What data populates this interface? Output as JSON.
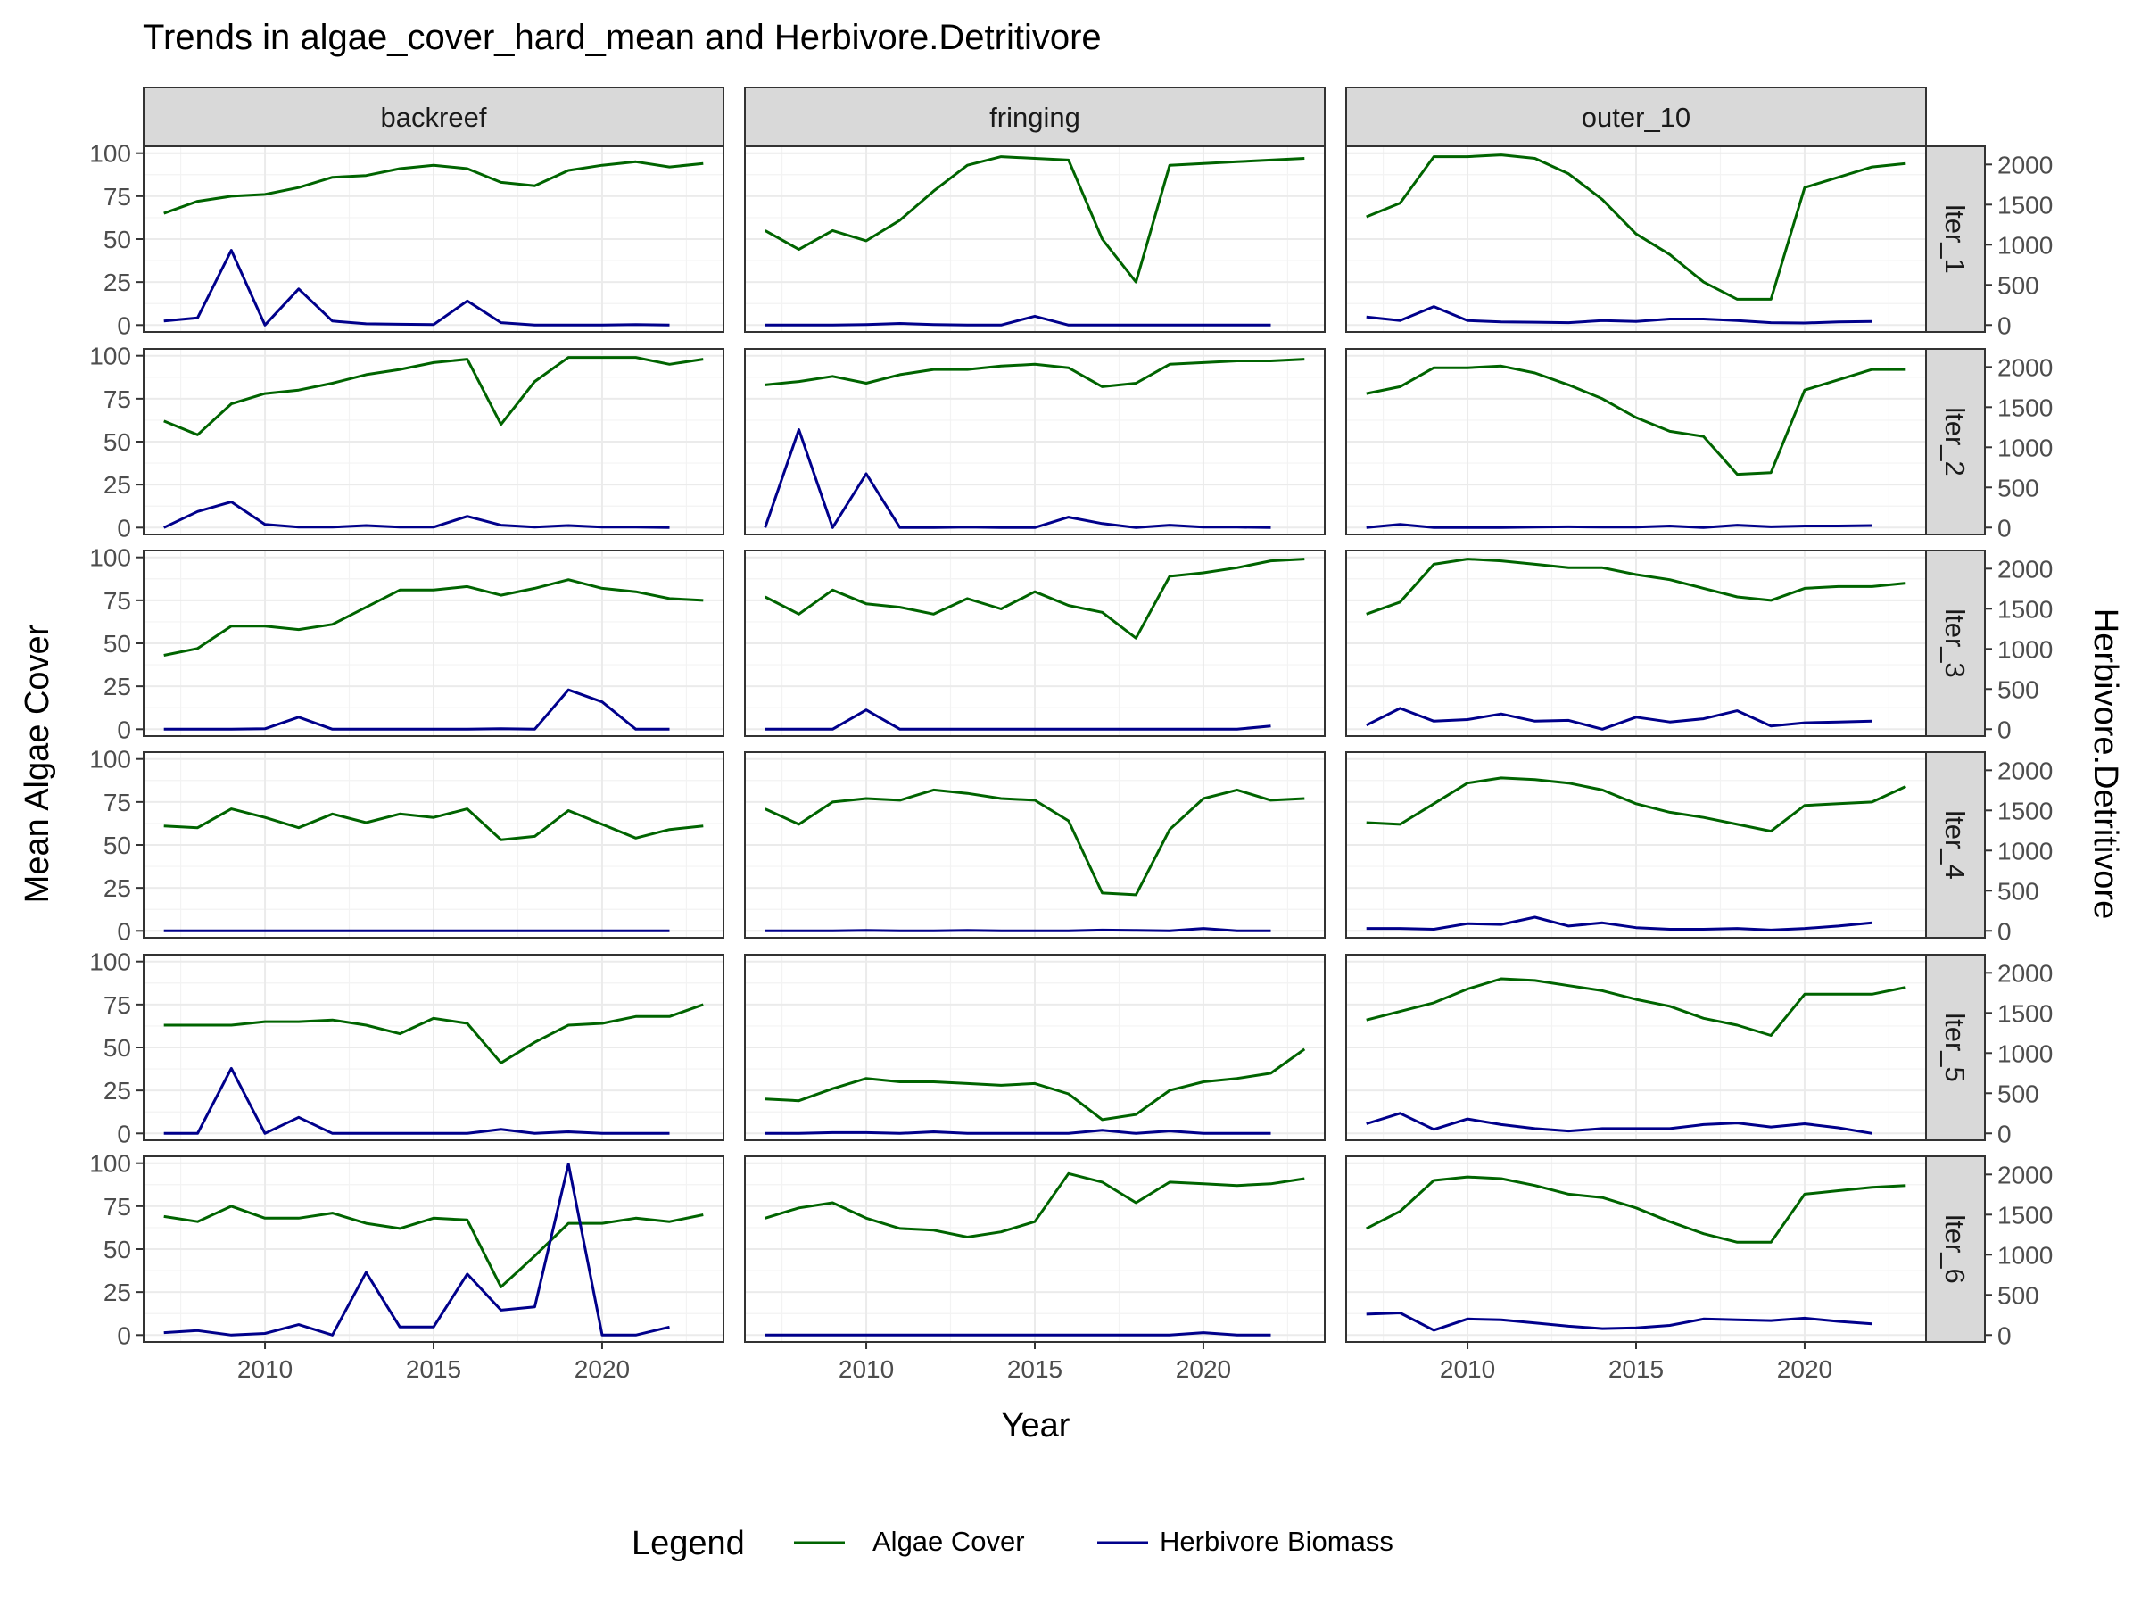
{
  "chart_data": {
    "type": "line",
    "title": "Trends in algae_cover_hard_mean and Herbivore.Detritivore",
    "xlabel": "Year",
    "ylabel": "Mean Algae Cover",
    "ylabel_right": "Herbivore.Detritivore",
    "legend": {
      "title": "Legend",
      "position": "bottom",
      "items": [
        {
          "name": "Algae Cover",
          "color": "#006400"
        },
        {
          "name": "Herbivore Biomass",
          "color": "#00008B"
        }
      ]
    },
    "xlim": [
      2006.4,
      2023.6
    ],
    "x_ticks": [
      2010,
      2015,
      2020
    ],
    "ylim": [
      -4,
      104
    ],
    "y_ticks": [
      0,
      25,
      50,
      75,
      100
    ],
    "ylim_right": [
      -86.0,
      2226.0
    ],
    "y_right_ticks": [
      0,
      500,
      1000,
      1500,
      2000
    ],
    "grid": true,
    "colors": {
      "algae": "#006400",
      "herbivore": "#00008B",
      "strip_bg": "#D9D9D9",
      "panel_border": "#333333",
      "grid": "#EBEBEB"
    },
    "columns": [
      "backreef",
      "fringing",
      "outer_10"
    ],
    "rows": [
      "lter_1",
      "lter_2",
      "lter_3",
      "lter_4",
      "lter_5",
      "lter_6"
    ],
    "algae_years": [
      2007,
      2008,
      2009,
      2010,
      2011,
      2012,
      2013,
      2014,
      2015,
      2016,
      2017,
      2018,
      2019,
      2020,
      2021,
      2022,
      2023
    ],
    "herbivore_years": [
      2007,
      2008,
      2009,
      2010,
      2011,
      2012,
      2013,
      2014,
      2015,
      2016,
      2017,
      2018,
      2019,
      2020,
      2021,
      2022
    ],
    "panels": [
      [
        {
          "algae": [
            65,
            72,
            75,
            76,
            80,
            86,
            87,
            91,
            93,
            91,
            83,
            81,
            90,
            93,
            95,
            92,
            94
          ],
          "herbivore": [
            50,
            90,
            930,
            0,
            450,
            50,
            15,
            10,
            5,
            300,
            30,
            0,
            0,
            0,
            5,
            0
          ]
        },
        {
          "algae": [
            55,
            44,
            55,
            49,
            61,
            78,
            93,
            98,
            97,
            96,
            50,
            25,
            93,
            94,
            95,
            96,
            97
          ],
          "herbivore": [
            0,
            0,
            0,
            5,
            20,
            5,
            0,
            0,
            110,
            0,
            0,
            0,
            0,
            0,
            0,
            0
          ]
        },
        {
          "algae": [
            63,
            71,
            98,
            98,
            99,
            97,
            88,
            73,
            53,
            41,
            25,
            15,
            15,
            80,
            86,
            92,
            94
          ],
          "herbivore": [
            100,
            55,
            230,
            55,
            40,
            35,
            30,
            55,
            45,
            75,
            75,
            55,
            30,
            25,
            40,
            45
          ]
        }
      ],
      [
        {
          "algae": [
            62,
            54,
            72,
            78,
            80,
            84,
            89,
            92,
            96,
            98,
            60,
            85,
            99,
            99,
            99,
            95,
            98
          ],
          "herbivore": [
            0,
            200,
            320,
            40,
            5,
            5,
            25,
            5,
            5,
            140,
            30,
            5,
            25,
            5,
            5,
            0
          ]
        },
        {
          "algae": [
            83,
            85,
            88,
            84,
            89,
            92,
            92,
            94,
            95,
            93,
            82,
            84,
            95,
            96,
            97,
            97,
            98
          ],
          "herbivore": [
            0,
            1220,
            0,
            670,
            0,
            0,
            5,
            0,
            0,
            130,
            50,
            0,
            30,
            5,
            5,
            0
          ]
        },
        {
          "algae": [
            78,
            82,
            93,
            93,
            94,
            90,
            83,
            75,
            64,
            56,
            53,
            31,
            32,
            80,
            86,
            92,
            92
          ],
          "herbivore": [
            0,
            40,
            0,
            0,
            0,
            5,
            10,
            5,
            5,
            20,
            0,
            30,
            10,
            20,
            20,
            25
          ]
        }
      ],
      [
        {
          "algae": [
            43,
            47,
            60,
            60,
            58,
            61,
            71,
            81,
            81,
            83,
            78,
            82,
            87,
            82,
            80,
            76,
            75
          ],
          "herbivore": [
            0,
            0,
            0,
            5,
            150,
            0,
            0,
            0,
            0,
            0,
            5,
            0,
            490,
            340,
            0,
            0
          ]
        },
        {
          "algae": [
            77,
            67,
            81,
            73,
            71,
            67,
            76,
            70,
            80,
            72,
            68,
            53,
            89,
            91,
            94,
            98,
            99
          ],
          "herbivore": [
            0,
            0,
            0,
            240,
            0,
            0,
            0,
            0,
            0,
            0,
            0,
            0,
            0,
            0,
            0,
            40
          ]
        },
        {
          "algae": [
            67,
            74,
            96,
            99,
            98,
            96,
            94,
            94,
            90,
            87,
            82,
            77,
            75,
            82,
            83,
            83,
            85
          ],
          "herbivore": [
            50,
            260,
            100,
            120,
            190,
            100,
            110,
            0,
            150,
            90,
            130,
            230,
            40,
            80,
            90,
            100
          ]
        }
      ],
      [
        {
          "algae": [
            61,
            60,
            71,
            66,
            60,
            68,
            63,
            68,
            66,
            71,
            53,
            55,
            70,
            62,
            54,
            59,
            61
          ],
          "herbivore": [
            0,
            0,
            0,
            0,
            0,
            0,
            0,
            0,
            0,
            0,
            0,
            0,
            0,
            0,
            0,
            0
          ]
        },
        {
          "algae": [
            71,
            62,
            75,
            77,
            76,
            82,
            80,
            77,
            76,
            64,
            22,
            21,
            59,
            77,
            82,
            76,
            77
          ],
          "herbivore": [
            0,
            0,
            0,
            5,
            0,
            0,
            5,
            0,
            0,
            0,
            10,
            5,
            0,
            30,
            0,
            0
          ]
        },
        {
          "algae": [
            63,
            62,
            74,
            86,
            89,
            88,
            86,
            82,
            74,
            69,
            66,
            62,
            58,
            73,
            74,
            75,
            84
          ],
          "herbivore": [
            30,
            30,
            20,
            90,
            80,
            170,
            60,
            100,
            40,
            20,
            20,
            30,
            10,
            30,
            60,
            100
          ]
        }
      ],
      [
        {
          "algae": [
            63,
            63,
            63,
            65,
            65,
            66,
            63,
            58,
            67,
            64,
            41,
            53,
            63,
            64,
            68,
            68,
            75
          ],
          "herbivore": [
            0,
            0,
            810,
            0,
            200,
            0,
            0,
            0,
            0,
            0,
            50,
            0,
            20,
            0,
            0,
            0
          ]
        },
        {
          "algae": [
            20,
            19,
            26,
            32,
            30,
            30,
            29,
            28,
            29,
            23,
            8,
            11,
            25,
            30,
            32,
            35,
            49
          ],
          "herbivore": [
            0,
            0,
            10,
            10,
            0,
            20,
            0,
            0,
            0,
            0,
            40,
            0,
            30,
            0,
            0,
            0
          ]
        },
        {
          "algae": [
            66,
            71,
            76,
            84,
            90,
            89,
            86,
            83,
            78,
            74,
            67,
            63,
            57,
            81,
            81,
            81,
            85
          ],
          "herbivore": [
            120,
            250,
            50,
            180,
            110,
            60,
            30,
            60,
            60,
            60,
            110,
            130,
            80,
            120,
            70,
            0
          ]
        }
      ],
      [
        {
          "algae": [
            69,
            66,
            75,
            68,
            68,
            71,
            65,
            62,
            68,
            67,
            28,
            46,
            65,
            65,
            68,
            66,
            70
          ],
          "herbivore": [
            30,
            55,
            0,
            20,
            130,
            0,
            780,
            100,
            100,
            760,
            310,
            350,
            2130,
            0,
            0,
            100
          ]
        },
        {
          "algae": [
            68,
            74,
            77,
            68,
            62,
            61,
            57,
            60,
            66,
            94,
            89,
            77,
            89,
            88,
            87,
            88,
            91
          ],
          "herbivore": [
            0,
            0,
            0,
            0,
            0,
            0,
            0,
            0,
            0,
            0,
            0,
            0,
            0,
            30,
            0,
            0
          ]
        },
        {
          "algae": [
            62,
            72,
            90,
            92,
            91,
            87,
            82,
            80,
            74,
            66,
            59,
            54,
            54,
            82,
            84,
            86,
            87
          ],
          "herbivore": [
            260,
            275,
            60,
            200,
            190,
            150,
            110,
            80,
            90,
            120,
            200,
            190,
            180,
            210,
            170,
            140
          ]
        }
      ]
    ]
  }
}
